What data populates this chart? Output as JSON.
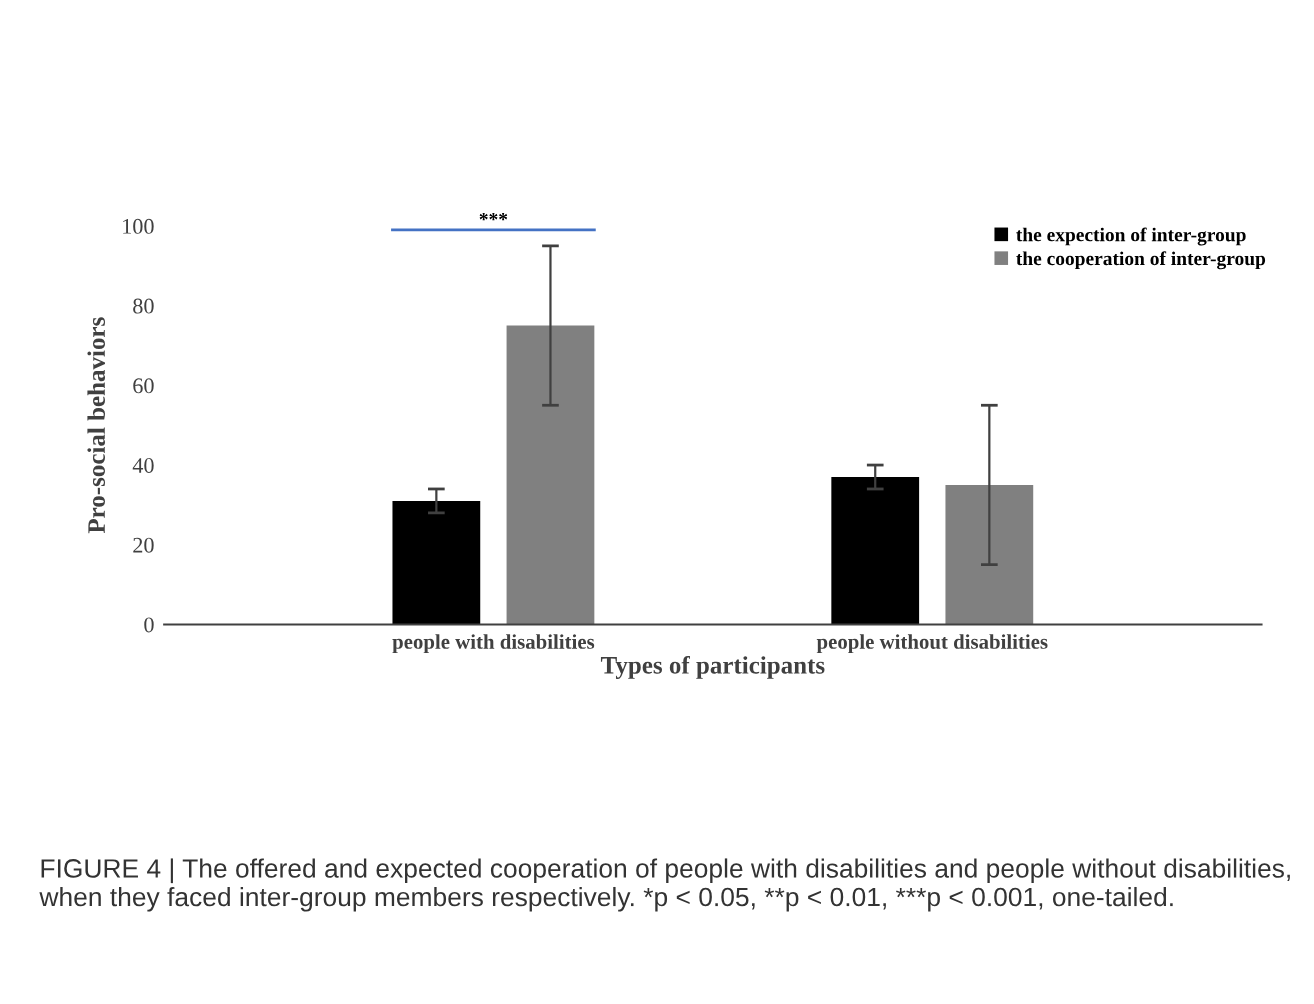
{
  "chart_data": {
    "type": "bar",
    "xlabel": "Types of participants",
    "ylabel": "Pro-social behaviors",
    "categories": [
      "people with disabilities",
      "people without disabilities"
    ],
    "series": [
      {
        "name": "the expection of inter-group",
        "color": "#000000",
        "values": [
          31,
          37
        ],
        "errors": [
          3,
          3
        ]
      },
      {
        "name": "the cooperation of inter-group",
        "color": "#808080",
        "values": [
          75,
          35
        ],
        "errors": [
          20,
          20
        ]
      }
    ],
    "ylim": [
      0,
      100
    ],
    "yticks": [
      0,
      20,
      40,
      60,
      80,
      100
    ],
    "grid": false,
    "legend": "top right",
    "annotations": [
      "***",
      "FIGURE 4 | The offered and expected cooperation of people with disabilities and people without disabilities, when they faced inter-group members respectively. *p < 0.05, **p < 0.01, ***p < 0.001, one-tailed."
    ]
  }
}
